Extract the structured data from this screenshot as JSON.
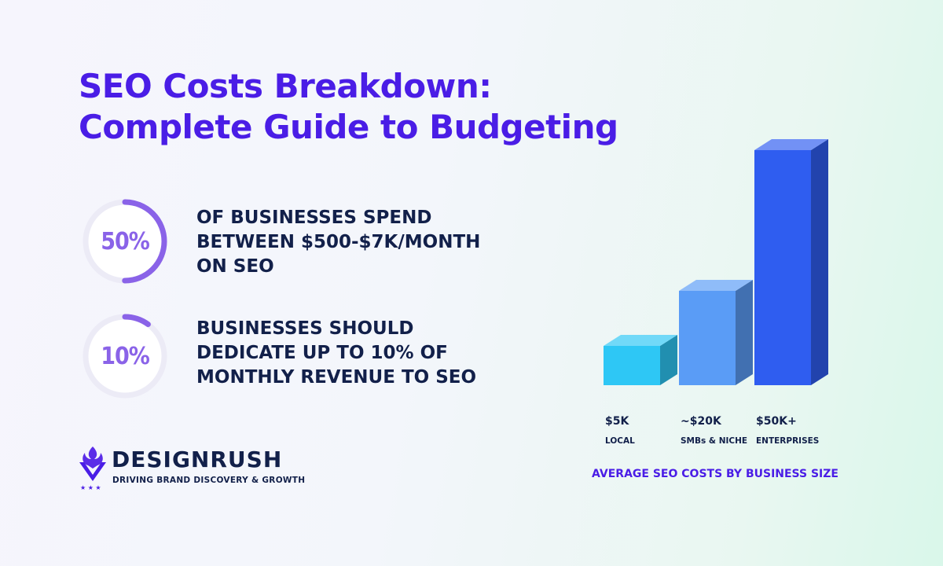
{
  "title": {
    "line1": "SEO Costs Breakdown:",
    "line2": "Complete Guide to Budgeting"
  },
  "stats": [
    {
      "value": "50%",
      "fraction": 0.5,
      "lines": [
        "OF BUSINESSES SPEND",
        "BETWEEN $500-$7K/MONTH",
        "ON SEO"
      ]
    },
    {
      "value": "10%",
      "fraction": 0.1,
      "lines": [
        "BUSINESSES SHOULD",
        "DEDICATE UP TO 10% OF",
        "MONTHLY REVENUE TO SEO"
      ]
    }
  ],
  "brand": {
    "name": "DESIGNRUSH",
    "tagline": "DRIVING BRAND DISCOVERY & GROWTH"
  },
  "chart_data": {
    "type": "bar",
    "title": "AVERAGE SEO COSTS BY BUSINESS SIZE",
    "categories": [
      "LOCAL",
      "SMBs & NICHE",
      "ENTERPRISES"
    ],
    "value_labels": [
      "$5K",
      "~$20K",
      "$50K+"
    ],
    "values": [
      5000,
      20000,
      50000
    ],
    "colors": [
      "#2ec7f5",
      "#5a9cf6",
      "#2f5df0"
    ]
  },
  "colors": {
    "accent": "#4a1de6",
    "ring": "#8a63e8",
    "text": "#12204a"
  }
}
